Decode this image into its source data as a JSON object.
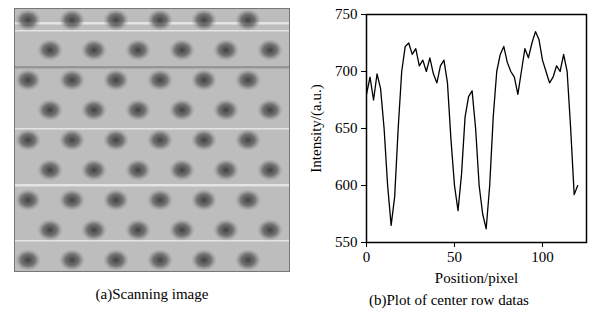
{
  "image": {
    "caption": "(a)Scanning image"
  },
  "chart_data": {
    "type": "line",
    "caption": "(b)Plot of center row datas",
    "x_label": "Position/pixel",
    "y_label": "Intensity/(a.u.)",
    "x": [
      0,
      2,
      4,
      6,
      8,
      10,
      12,
      14,
      16,
      18,
      20,
      22,
      24,
      26,
      28,
      30,
      32,
      34,
      36,
      38,
      40,
      42,
      44,
      46,
      48,
      50,
      52,
      54,
      56,
      58,
      60,
      62,
      64,
      66,
      68,
      70,
      72,
      74,
      76,
      78,
      80,
      82,
      84,
      86,
      88,
      90,
      92,
      94,
      96,
      98,
      100,
      102,
      104,
      106,
      108,
      110,
      112,
      114,
      116,
      118,
      120
    ],
    "values": [
      680,
      695,
      675,
      698,
      685,
      650,
      600,
      565,
      590,
      650,
      700,
      722,
      725,
      715,
      720,
      705,
      710,
      700,
      712,
      698,
      690,
      705,
      710,
      690,
      640,
      600,
      578,
      610,
      660,
      678,
      683,
      650,
      600,
      575,
      562,
      600,
      660,
      700,
      715,
      722,
      708,
      700,
      695,
      680,
      700,
      720,
      712,
      725,
      735,
      728,
      710,
      700,
      690,
      695,
      705,
      700,
      715,
      700,
      650,
      592,
      600
    ],
    "color": "#000000",
    "xlim": [
      0,
      125
    ],
    "xticks": [
      0,
      50,
      100
    ],
    "ylim": [
      550,
      750
    ],
    "yticks": [
      550,
      600,
      650,
      700,
      750
    ],
    "grid": false
  }
}
